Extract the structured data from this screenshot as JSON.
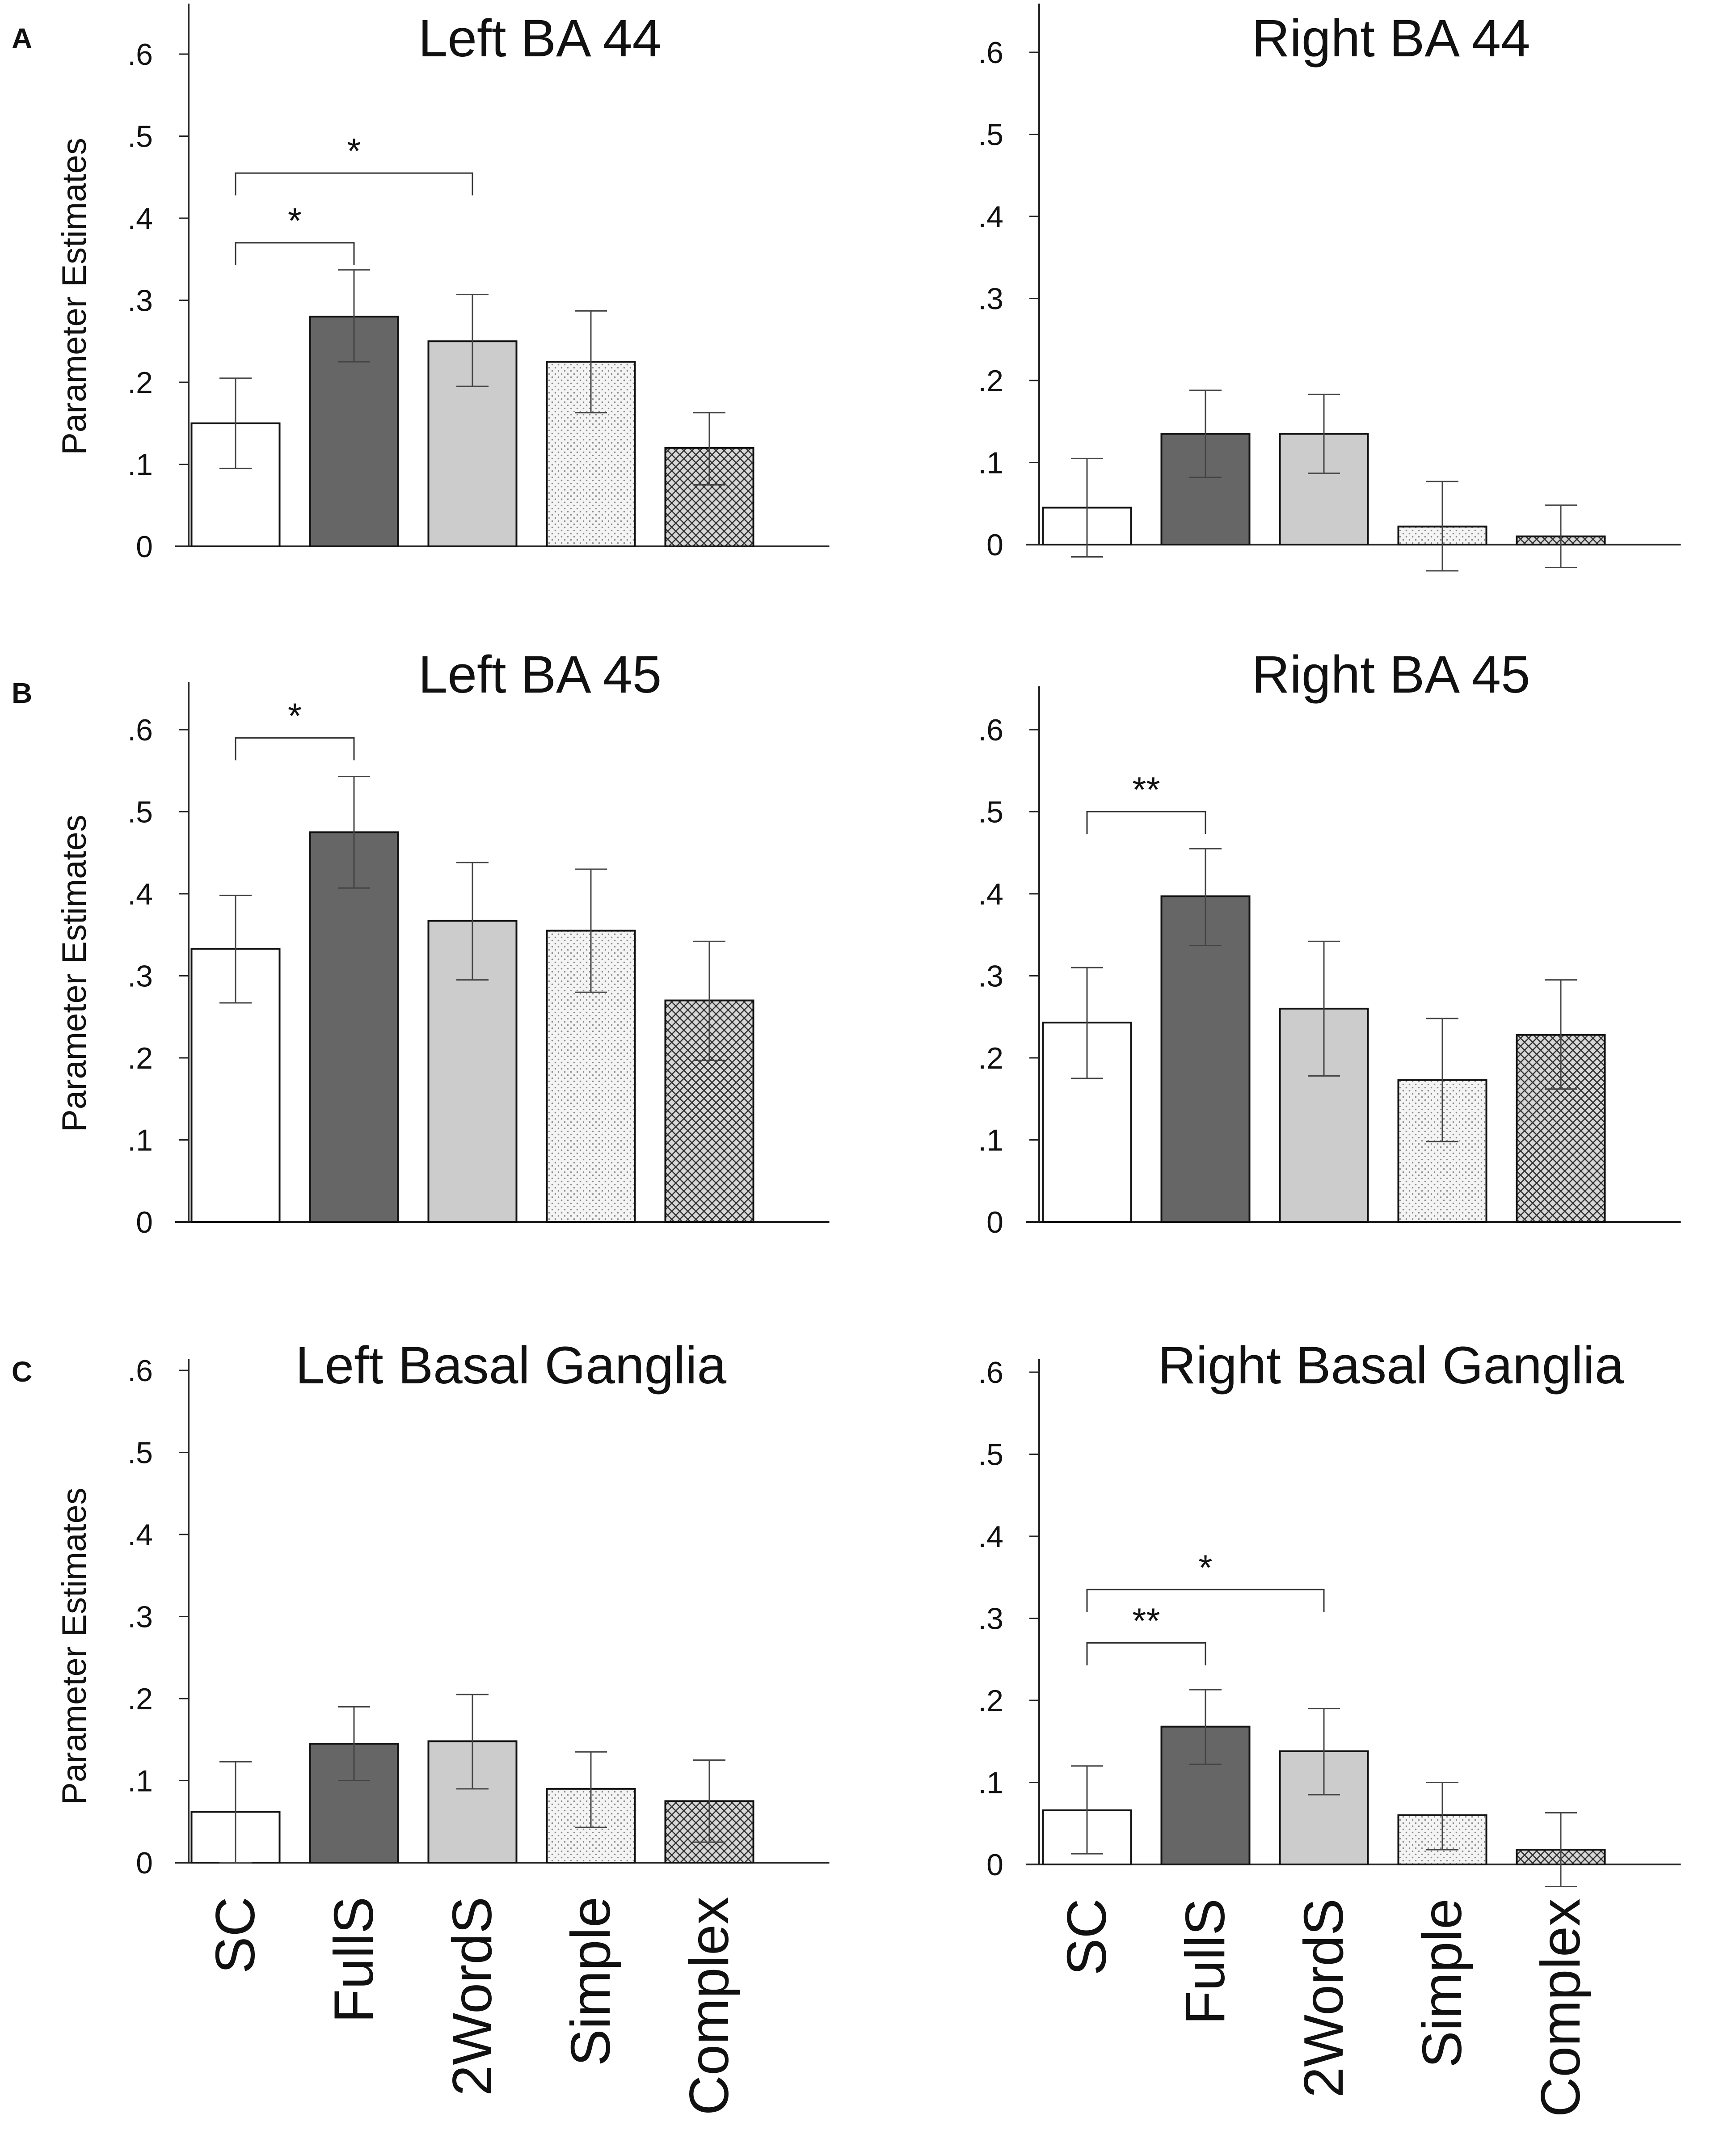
{
  "figure": {
    "ylabel": "Parameter Estimates",
    "y_ticks": [
      0,
      0.1,
      0.2,
      0.3,
      0.4,
      0.5,
      0.6
    ],
    "y_tick_labels": [
      "0",
      ".1",
      ".2",
      ".3",
      ".4",
      ".5",
      ".6"
    ],
    "categories": [
      "SC",
      "FullS",
      "2WordS",
      "Simple",
      "Complex"
    ],
    "bar_styles": [
      {
        "fill": "#ffffff",
        "pattern": "none"
      },
      {
        "fill": "#666666",
        "pattern": "none"
      },
      {
        "fill": "#cccccc",
        "pattern": "none"
      },
      {
        "fill": "#f4f4f4",
        "pattern": "dots"
      },
      {
        "fill": "#d8d8d8",
        "pattern": "crosshatch"
      }
    ],
    "ylim": [
      0,
      0.65
    ]
  },
  "chart_data": [
    {
      "type": "bar",
      "row": "A",
      "title": "Left BA 44",
      "categories": [
        "SC",
        "FullS",
        "2WordS",
        "Simple",
        "Complex"
      ],
      "values": [
        0.15,
        0.28,
        0.25,
        0.225,
        0.12
      ],
      "error_low": [
        0.095,
        0.225,
        0.195,
        0.163,
        0.075
      ],
      "error_high": [
        0.205,
        0.337,
        0.307,
        0.287,
        0.163
      ],
      "significance": [
        {
          "from": "SC",
          "to": "FullS",
          "label": "*",
          "level": 0.37
        },
        {
          "from": "SC",
          "to": "2WordS",
          "label": "*",
          "level": 0.455
        }
      ],
      "ylim": [
        0,
        0.65
      ]
    },
    {
      "type": "bar",
      "row": "A",
      "title": "Right BA 44",
      "categories": [
        "SC",
        "FullS",
        "2WordS",
        "Simple",
        "Complex"
      ],
      "values": [
        0.045,
        0.135,
        0.135,
        0.022,
        0.01
      ],
      "error_low": [
        -0.015,
        0.082,
        0.087,
        -0.032,
        -0.028
      ],
      "error_high": [
        0.105,
        0.188,
        0.183,
        0.077,
        0.048
      ],
      "significance": [],
      "ylim": [
        0,
        0.65
      ]
    },
    {
      "type": "bar",
      "row": "B",
      "title": "Left BA 45",
      "categories": [
        "SC",
        "FullS",
        "2WordS",
        "Simple",
        "Complex"
      ],
      "values": [
        0.333,
        0.475,
        0.367,
        0.355,
        0.27
      ],
      "error_low": [
        0.267,
        0.407,
        0.295,
        0.28,
        0.197
      ],
      "error_high": [
        0.398,
        0.543,
        0.438,
        0.43,
        0.342
      ],
      "significance": [
        {
          "from": "SC",
          "to": "FullS",
          "label": "*",
          "level": 0.59
        }
      ],
      "ylim": [
        0,
        0.65
      ]
    },
    {
      "type": "bar",
      "row": "B",
      "title": "Right BA 45",
      "categories": [
        "SC",
        "FullS",
        "2WordS",
        "Simple",
        "Complex"
      ],
      "values": [
        0.243,
        0.397,
        0.26,
        0.173,
        0.228
      ],
      "error_low": [
        0.175,
        0.337,
        0.178,
        0.098,
        0.162
      ],
      "error_high": [
        0.31,
        0.455,
        0.342,
        0.248,
        0.295
      ],
      "significance": [
        {
          "from": "SC",
          "to": "FullS",
          "label": "**",
          "level": 0.5
        }
      ],
      "ylim": [
        0,
        0.65
      ]
    },
    {
      "type": "bar",
      "row": "C",
      "title": "Left Basal Ganglia",
      "categories": [
        "SC",
        "FullS",
        "2WordS",
        "Simple",
        "Complex"
      ],
      "values": [
        0.062,
        0.145,
        0.148,
        0.09,
        0.075
      ],
      "error_low": [
        0.0,
        0.1,
        0.09,
        0.043,
        0.025
      ],
      "error_high": [
        0.123,
        0.19,
        0.205,
        0.135,
        0.125
      ],
      "significance": [],
      "ylim": [
        0,
        0.65
      ]
    },
    {
      "type": "bar",
      "row": "C",
      "title": "Right Basal Ganglia",
      "categories": [
        "SC",
        "FullS",
        "2WordS",
        "Simple",
        "Complex"
      ],
      "values": [
        0.066,
        0.168,
        0.138,
        0.06,
        0.018
      ],
      "error_low": [
        0.013,
        0.122,
        0.085,
        0.018,
        -0.027
      ],
      "error_high": [
        0.12,
        0.213,
        0.19,
        0.1,
        0.063
      ],
      "significance": [
        {
          "from": "SC",
          "to": "FullS",
          "label": "**",
          "level": 0.27
        },
        {
          "from": "SC",
          "to": "2WordS",
          "label": "*",
          "level": 0.335
        }
      ],
      "ylim": [
        0,
        0.65
      ]
    }
  ]
}
